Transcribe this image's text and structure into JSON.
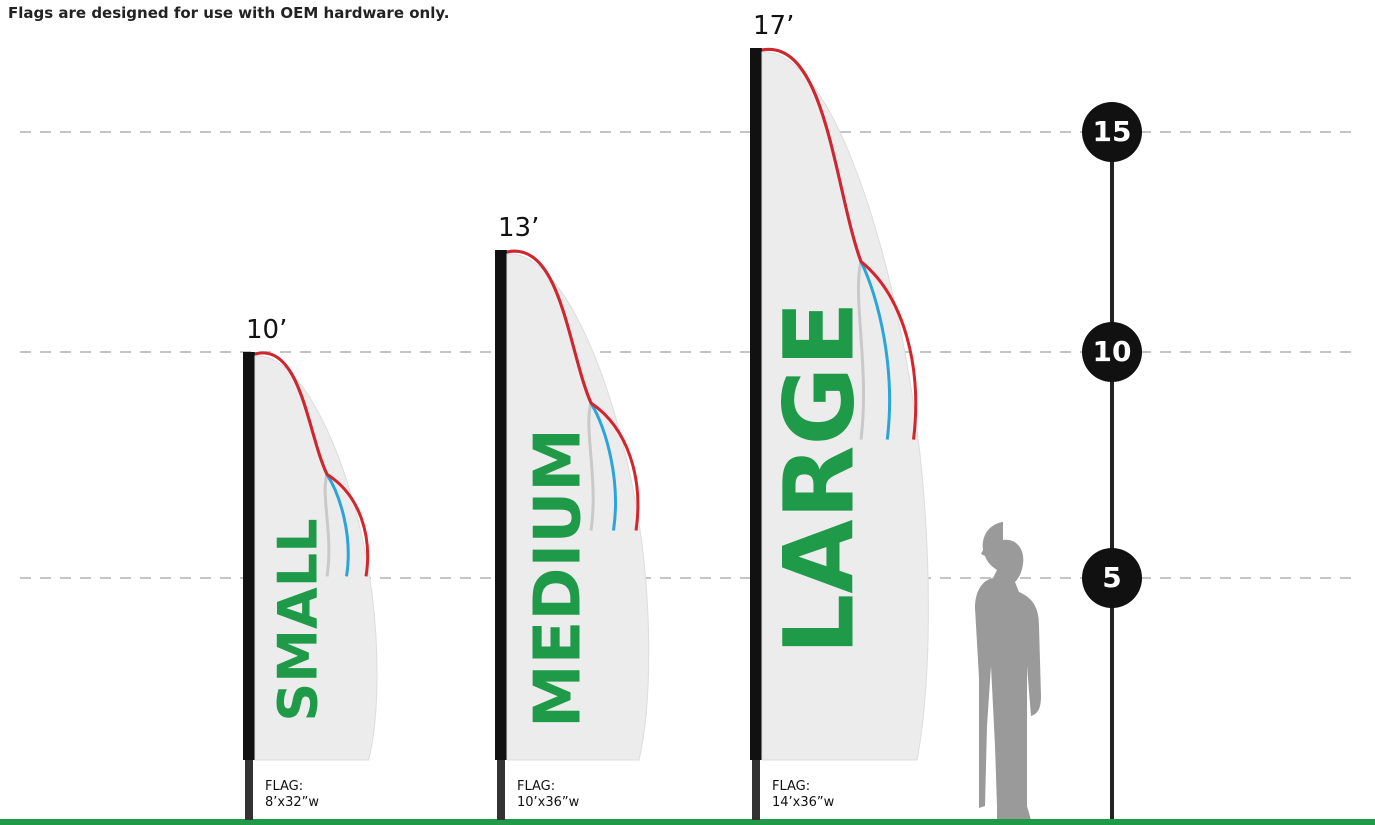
{
  "note": "Flags are designed for use with OEM hardware only.",
  "flags": [
    {
      "height": "10’",
      "name": "SMALL",
      "size": [
        "FLAG:",
        "8’x32”w"
      ]
    },
    {
      "height": "13’",
      "name": "MEDIUM",
      "size": [
        "FLAG:",
        "10’x36”w"
      ]
    },
    {
      "height": "17’",
      "name": "LARGE",
      "size": [
        "FLAG:",
        "14’x36”w"
      ]
    }
  ],
  "scale": [
    "15",
    "10",
    "5"
  ]
}
